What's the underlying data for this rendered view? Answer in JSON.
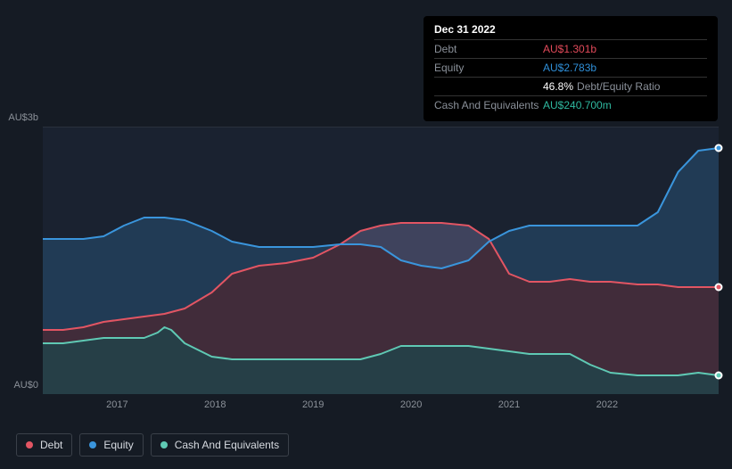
{
  "tooltip": {
    "title": "Dec 31 2022",
    "rows": [
      {
        "label": "Debt",
        "value": "AU$1.301b",
        "color": "#e24a5a"
      },
      {
        "label": "Equity",
        "value": "AU$2.783b",
        "color": "#2f8fd8"
      },
      {
        "label": "",
        "value": "46.8%",
        "suffix": "Debt/Equity Ratio",
        "color": "#ffffff"
      },
      {
        "label": "Cash And Equivalents",
        "value": "AU$240.700m",
        "color": "#2fb9a0"
      }
    ]
  },
  "chart": {
    "type": "area",
    "background_color": "#151b24",
    "plot_background": "#1a2230",
    "grid_color": "#2a313c",
    "ylabel_top": "AU$3b",
    "ylabel_bottom": "AU$0",
    "ylabel_color": "#8b9199",
    "ylabel_fontsize": 11,
    "ylim": [
      0,
      3
    ],
    "x_years": [
      "2017",
      "2018",
      "2019",
      "2020",
      "2021",
      "2022"
    ],
    "x_positions_pct": [
      11.0,
      25.5,
      40.0,
      54.5,
      69.0,
      83.5
    ],
    "series": [
      {
        "name": "Cash And Equivalents",
        "color": "#5fc9b4",
        "fill": "rgba(95,201,180,0.18)",
        "line_width": 2,
        "area_bottom_pct": 100,
        "points_pct": [
          [
            0,
            81
          ],
          [
            3,
            81
          ],
          [
            6,
            80
          ],
          [
            9,
            79
          ],
          [
            12,
            79
          ],
          [
            15,
            79
          ],
          [
            17,
            77
          ],
          [
            18,
            75
          ],
          [
            19,
            76
          ],
          [
            21,
            81
          ],
          [
            25,
            86
          ],
          [
            28,
            87
          ],
          [
            32,
            87
          ],
          [
            36,
            87
          ],
          [
            40,
            87
          ],
          [
            44,
            87
          ],
          [
            47,
            87
          ],
          [
            50,
            85
          ],
          [
            53,
            82
          ],
          [
            56,
            82
          ],
          [
            59,
            82
          ],
          [
            63,
            82
          ],
          [
            66,
            83
          ],
          [
            69,
            84
          ],
          [
            72,
            85
          ],
          [
            75,
            85
          ],
          [
            78,
            85
          ],
          [
            81,
            89
          ],
          [
            84,
            92
          ],
          [
            88,
            93
          ],
          [
            91,
            93
          ],
          [
            94,
            93
          ],
          [
            97,
            92
          ],
          [
            100,
            93
          ]
        ],
        "end_marker_border": "#ffffff"
      },
      {
        "name": "Debt",
        "color": "#e25563",
        "fill": "rgba(226,85,99,0.20)",
        "line_width": 2,
        "area_bottom_series": "Cash And Equivalents",
        "points_pct": [
          [
            0,
            76
          ],
          [
            3,
            76
          ],
          [
            6,
            75
          ],
          [
            9,
            73
          ],
          [
            12,
            72
          ],
          [
            15,
            71
          ],
          [
            18,
            70
          ],
          [
            21,
            68
          ],
          [
            25,
            62
          ],
          [
            28,
            55
          ],
          [
            32,
            52
          ],
          [
            36,
            51
          ],
          [
            40,
            49
          ],
          [
            44,
            44
          ],
          [
            47,
            39
          ],
          [
            50,
            37
          ],
          [
            53,
            36
          ],
          [
            56,
            36
          ],
          [
            59,
            36
          ],
          [
            63,
            37
          ],
          [
            66,
            42
          ],
          [
            69,
            55
          ],
          [
            72,
            58
          ],
          [
            75,
            58
          ],
          [
            78,
            57
          ],
          [
            81,
            58
          ],
          [
            84,
            58
          ],
          [
            88,
            59
          ],
          [
            91,
            59
          ],
          [
            94,
            60
          ],
          [
            97,
            60
          ],
          [
            100,
            60
          ]
        ],
        "end_marker_border": "#ffffff"
      },
      {
        "name": "Equity",
        "color": "#3a95dc",
        "fill": "rgba(58,149,220,0.22)",
        "line_width": 2,
        "area_bottom_series": "Debt",
        "points_pct": [
          [
            0,
            42
          ],
          [
            3,
            42
          ],
          [
            6,
            42
          ],
          [
            9,
            41
          ],
          [
            12,
            37
          ],
          [
            15,
            34
          ],
          [
            18,
            34
          ],
          [
            21,
            35
          ],
          [
            25,
            39
          ],
          [
            28,
            43
          ],
          [
            32,
            45
          ],
          [
            36,
            45
          ],
          [
            40,
            45
          ],
          [
            44,
            44
          ],
          [
            47,
            44
          ],
          [
            50,
            45
          ],
          [
            53,
            50
          ],
          [
            56,
            52
          ],
          [
            59,
            53
          ],
          [
            63,
            50
          ],
          [
            66,
            43
          ],
          [
            69,
            39
          ],
          [
            72,
            37
          ],
          [
            75,
            37
          ],
          [
            78,
            37
          ],
          [
            81,
            37
          ],
          [
            84,
            37
          ],
          [
            88,
            37
          ],
          [
            91,
            32
          ],
          [
            94,
            17
          ],
          [
            97,
            9
          ],
          [
            100,
            8
          ]
        ],
        "end_marker_border": "#ffffff"
      }
    ]
  },
  "legend": {
    "items": [
      {
        "label": "Debt",
        "color": "#e25563"
      },
      {
        "label": "Equity",
        "color": "#3a95dc"
      },
      {
        "label": "Cash And Equivalents",
        "color": "#5fc9b4"
      }
    ],
    "border_color": "#3a4049",
    "text_color": "#d6dae0",
    "fontsize": 12
  }
}
